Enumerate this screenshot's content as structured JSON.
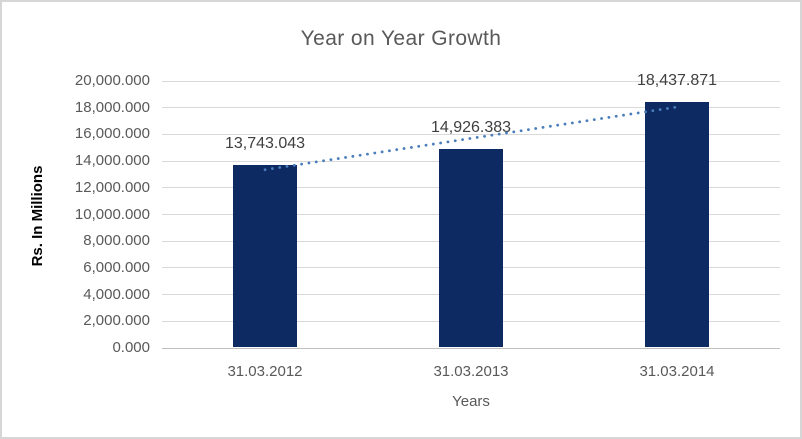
{
  "chart": {
    "title": "Year on Year Growth",
    "y_axis_title": "Rs. In Millions",
    "x_axis_title": "Years"
  },
  "chart_data": {
    "type": "bar",
    "title": "Year on Year Growth",
    "xlabel": "Years",
    "ylabel": "Rs. In Millions",
    "categories": [
      "31.03.2012",
      "31.03.2013",
      "31.03.2014"
    ],
    "values": [
      13743.043,
      14926.383,
      18437.871
    ],
    "value_labels": [
      "13,743.043",
      "14,926.383",
      "18,437.871"
    ],
    "ylim": [
      0,
      20000
    ],
    "y_tick_step": 2000,
    "y_tick_labels": [
      "0.000",
      "2,000.000",
      "4,000.000",
      "6,000.000",
      "8,000.000",
      "10,000.000",
      "12,000.000",
      "14,000.000",
      "16,000.000",
      "18,000.000",
      "20,000.000"
    ],
    "grid": true,
    "legend": false,
    "trendline": {
      "type": "linear",
      "style": "dotted"
    },
    "colors": {
      "bar": "#0d2a63",
      "trendline": "#4a7ebb",
      "title_text": "#595959",
      "tick_text": "#595959",
      "value_label_text": "#3f3f3f",
      "gridline": "#d9d9d9",
      "axis_line": "#bfbfbf",
      "frame_border": "#d6d6d6"
    }
  }
}
